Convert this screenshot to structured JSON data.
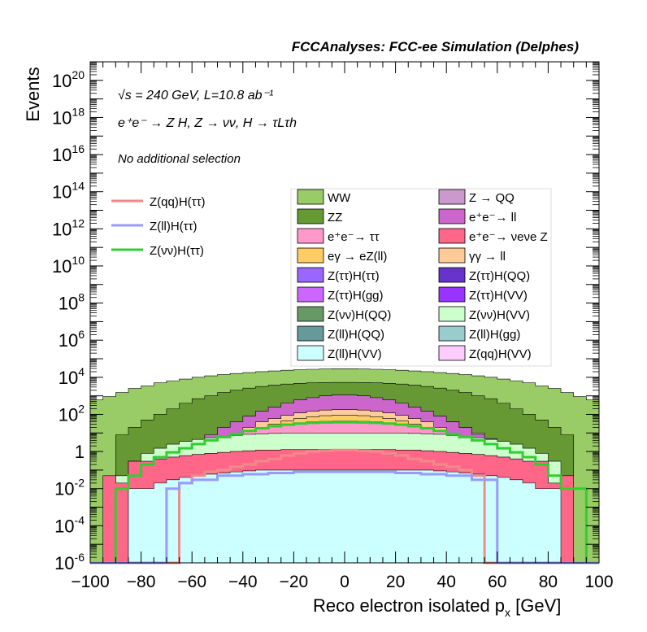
{
  "header": {
    "title": "FCCAnalyses: FCC-ee Simulation (Delphes)",
    "ecm_line": "√s = 240 GeV, L=10.8 ab⁻¹",
    "process_line": "e⁺e⁻ → Z H, Z → νν, H → τLτh",
    "selection_line": "No additional selection"
  },
  "legend_signal": [
    {
      "name": "Z(qq)H(ττ)",
      "color": "#f08a8a"
    },
    {
      "name": "Z(ll)H(ττ)",
      "color": "#9999ff"
    },
    {
      "name": "Z(νν)H(ττ)",
      "color": "#33cc33"
    }
  ],
  "legend_bkg": [
    {
      "name": "WW",
      "color": "#99cc66"
    },
    {
      "name": "Z → QQ",
      "color": "#cc99cc"
    },
    {
      "name": "ZZ",
      "color": "#669933"
    },
    {
      "name": "e⁺e⁻→ ll",
      "color": "#cc66cc"
    },
    {
      "name": "e⁺e⁻→ ττ",
      "color": "#ff99cc"
    },
    {
      "name": "e⁺e⁻→ νeνe Z",
      "color": "#ff6688"
    },
    {
      "name": "eγ → eZ(ll)",
      "color": "#ffcc66"
    },
    {
      "name": "γγ → ll",
      "color": "#ffcc99"
    },
    {
      "name": "Z(ττ)H(ττ)",
      "color": "#9966ff"
    },
    {
      "name": "Z(ττ)H(QQ)",
      "color": "#6633cc"
    },
    {
      "name": "Z(ττ)H(gg)",
      "color": "#cc66ff"
    },
    {
      "name": "Z(ττ)H(VV)",
      "color": "#9933ff"
    },
    {
      "name": "Z(νν)H(QQ)",
      "color": "#669966"
    },
    {
      "name": "Z(νν)H(VV)",
      "color": "#ccffcc"
    },
    {
      "name": "Z(ll)H(QQ)",
      "color": "#669999"
    },
    {
      "name": "Z(ll)H(gg)",
      "color": "#99cccc"
    },
    {
      "name": "Z(ll)H(VV)",
      "color": "#ccffff"
    },
    {
      "name": "Z(qq)H(VV)",
      "color": "#ffccff"
    }
  ],
  "chart_data": {
    "type": "area",
    "stacked": true,
    "yscale": "log",
    "xlabel": "Reco electron isolated p",
    "xlabel_sub": "x",
    "xlabel_unit": "[GeV]",
    "ylabel": "Events",
    "xlim": [
      -100,
      100
    ],
    "ylim": [
      1e-06,
      1e+21
    ],
    "xticks": [
      "−100",
      "−80",
      "−60",
      "−40",
      "−20",
      "0",
      "20",
      "40",
      "60",
      "80",
      "100"
    ],
    "yticks": [
      {
        "base": "10",
        "exp": "-6",
        "value": 1e-06
      },
      {
        "base": "10",
        "exp": "-4",
        "value": 0.0001
      },
      {
        "base": "10",
        "exp": "-2",
        "value": 0.01
      },
      {
        "base": "1",
        "exp": "",
        "value": 1
      },
      {
        "base": "10",
        "exp": "2",
        "value": 100.0
      },
      {
        "base": "10",
        "exp": "4",
        "value": 10000.0
      },
      {
        "base": "10",
        "exp": "6",
        "value": 1000000.0
      },
      {
        "base": "10",
        "exp": "8",
        "value": 100000000.0
      },
      {
        "base": "10",
        "exp": "10",
        "value": 10000000000.0
      },
      {
        "base": "10",
        "exp": "12",
        "value": 1000000000000.0
      },
      {
        "base": "10",
        "exp": "14",
        "value": 100000000000000.0
      },
      {
        "base": "10",
        "exp": "16",
        "value": 1e+16
      },
      {
        "base": "10",
        "exp": "18",
        "value": 1e+18
      },
      {
        "base": "10",
        "exp": "20",
        "value": 1e+20
      }
    ],
    "bin_centers": [
      -97.5,
      -92.5,
      -87.5,
      -82.5,
      -77.5,
      -72.5,
      -67.5,
      -62.5,
      -57.5,
      -52.5,
      -47.5,
      -42.5,
      -37.5,
      -32.5,
      -27.5,
      -22.5,
      -17.5,
      -12.5,
      -7.5,
      -2.5,
      2.5,
      7.5,
      12.5,
      17.5,
      22.5,
      27.5,
      32.5,
      37.5,
      42.5,
      47.5,
      52.5,
      57.5,
      62.5,
      67.5,
      72.5,
      77.5,
      82.5,
      87.5,
      92.5,
      97.5
    ],
    "stack_top_values": [
      {
        "name": "WW",
        "color": "#99cc66",
        "values": [
          600,
          900,
          1500,
          2500,
          3500,
          5000,
          6500,
          8000,
          10000,
          12000,
          14000,
          16000,
          18000,
          20000,
          22000,
          24000,
          26000,
          27000,
          28000,
          29000,
          29000,
          28000,
          27000,
          26000,
          24000,
          22000,
          20000,
          18000,
          16000,
          14000,
          12000,
          10000,
          8000,
          6500,
          5000,
          3500,
          2500,
          1500,
          900,
          600
        ]
      },
      {
        "name": "ZZ",
        "color": "#669933",
        "values": [
          1e-06,
          1e-06,
          8,
          20,
          50,
          100,
          200,
          400,
          700,
          1000,
          1500,
          2000,
          2600,
          3200,
          3800,
          4300,
          4700,
          5000,
          5200,
          5300,
          5300,
          5200,
          5000,
          4700,
          4300,
          3800,
          3200,
          2600,
          2000,
          1500,
          1000,
          700,
          400,
          200,
          100,
          50,
          20,
          8,
          1e-06,
          1e-06
        ]
      },
      {
        "name": "Z → QQ",
        "color": "#cc99cc",
        "values": [
          1e-06,
          1e-06,
          1e-06,
          1e-06,
          1e-06,
          1e-06,
          1e-06,
          1e-06,
          1e-06,
          5,
          10,
          20,
          40,
          60,
          100,
          150,
          200,
          280,
          350,
          400,
          420,
          380,
          320,
          260,
          200,
          150,
          100,
          60,
          40,
          20,
          10,
          5,
          1e-06,
          1e-06,
          1e-06,
          1e-06,
          1e-06,
          1e-06,
          1e-06,
          1e-06
        ]
      },
      {
        "name": "e⁺e⁻→ ll",
        "color": "#cc66cc",
        "values": [
          1e-06,
          1e-06,
          1e-06,
          1e-06,
          1e-06,
          1e-06,
          1e-06,
          1,
          3,
          8,
          20,
          40,
          80,
          150,
          250,
          400,
          600,
          800,
          1000,
          1100,
          1100,
          1000,
          800,
          600,
          400,
          250,
          150,
          80,
          40,
          20,
          8,
          3,
          1,
          1e-06,
          1e-06,
          1e-06,
          1e-06,
          1e-06,
          1e-06,
          1e-06
        ]
      },
      {
        "name": "γγ → ll",
        "color": "#ffcc99",
        "values": [
          1e-06,
          1e-06,
          1e-06,
          1e-06,
          1e-06,
          1e-06,
          1e-06,
          1e-06,
          1,
          2,
          5,
          10,
          20,
          40,
          60,
          90,
          120,
          150,
          170,
          180,
          180,
          170,
          150,
          120,
          90,
          60,
          40,
          20,
          10,
          5,
          2,
          1,
          1e-06,
          1e-06,
          1e-06,
          1e-06,
          1e-06,
          1e-06,
          1e-06,
          1e-06
        ]
      },
      {
        "name": "eγ → eZ(ll)",
        "color": "#ffcc66",
        "values": [
          1e-06,
          1e-06,
          1e-06,
          1e-06,
          1e-06,
          1e-06,
          1e-06,
          1e-06,
          1e-06,
          1,
          2,
          5,
          10,
          20,
          30,
          45,
          60,
          75,
          85,
          90,
          90,
          85,
          75,
          60,
          45,
          30,
          20,
          10,
          5,
          2,
          1,
          1e-06,
          1e-06,
          1e-06,
          1e-06,
          1e-06,
          1e-06,
          1e-06,
          1e-06,
          1e-06
        ]
      },
      {
        "name": "e⁺e⁻→ ττ",
        "color": "#ff99cc",
        "values": [
          1e-06,
          1e-06,
          1e-06,
          1e-06,
          1e-06,
          1e-06,
          0.5,
          1,
          2,
          3,
          5,
          8,
          12,
          18,
          25,
          30,
          35,
          40,
          42,
          44,
          44,
          42,
          40,
          35,
          30,
          25,
          18,
          12,
          8,
          5,
          3,
          2,
          1,
          0.5,
          1e-06,
          1e-06,
          1e-06,
          1e-06,
          1e-06,
          1e-06
        ]
      },
      {
        "name": "Z(νν)H(VV)",
        "color": "#ccffcc",
        "values": [
          1e-06,
          1e-06,
          0.05,
          0.3,
          0.8,
          1.5,
          2.5,
          3.5,
          4.5,
          5.5,
          6.5,
          7.5,
          8.5,
          9,
          9.5,
          10,
          10,
          10,
          10,
          10,
          10,
          10,
          10,
          10,
          10,
          9.5,
          9,
          8.5,
          7.5,
          6.5,
          5.5,
          4.5,
          3.5,
          2.5,
          1.5,
          0.8,
          0.3,
          0.05,
          1e-06,
          1e-06
        ]
      },
      {
        "name": "e⁺e⁻→ νeνe Z",
        "color": "#ff6688",
        "values": [
          1e-06,
          0.05,
          0.02,
          0.3,
          0.3,
          0.4,
          0.5,
          0.6,
          0.7,
          0.8,
          0.9,
          1,
          1.1,
          1.2,
          1.2,
          1.3,
          1.3,
          1.3,
          1.3,
          1.3,
          1.3,
          1.3,
          1.3,
          1.3,
          1.2,
          1.2,
          1.1,
          1,
          0.9,
          0.8,
          0.7,
          0.6,
          0.5,
          0.4,
          0.3,
          0.3,
          0.02,
          0.05,
          1e-06,
          1e-06
        ]
      },
      {
        "name": "Z(ll)H(VV)",
        "color": "#ccffff",
        "values": [
          1e-06,
          1e-06,
          1e-06,
          0.01,
          0.01,
          0.02,
          0.03,
          0.04,
          0.05,
          0.06,
          0.07,
          0.08,
          0.09,
          0.1,
          0.1,
          0.1,
          0.1,
          0.1,
          0.1,
          0.1,
          0.1,
          0.1,
          0.1,
          0.1,
          0.1,
          0.1,
          0.1,
          0.09,
          0.08,
          0.07,
          0.06,
          0.05,
          0.04,
          0.03,
          0.02,
          0.01,
          0.01,
          1e-06,
          1e-06,
          1e-06
        ]
      }
    ],
    "signal_lines": [
      {
        "name": "Z(νν)H(ττ)",
        "color": "#33cc33",
        "values": [
          1e-06,
          1e-06,
          0.01,
          0.05,
          0.2,
          0.5,
          0.9,
          1.5,
          2.5,
          4,
          6,
          9,
          13,
          18,
          23,
          28,
          32,
          35,
          37,
          38,
          38,
          37,
          35,
          32,
          28,
          23,
          18,
          13,
          9,
          6,
          4,
          2.5,
          1.5,
          0.9,
          0.5,
          0.2,
          0.05,
          0.01,
          0.01,
          1e-06
        ]
      },
      {
        "name": "Z(qq)H(ττ)",
        "color": "#f08a8a",
        "values": [
          1e-06,
          1e-06,
          1e-06,
          1e-06,
          1e-06,
          1e-06,
          1e-06,
          0.02,
          0.05,
          0.08,
          0.1,
          0.15,
          0.2,
          0.3,
          0.4,
          0.6,
          0.8,
          1.0,
          1.1,
          1.2,
          1.2,
          1.1,
          1.0,
          0.8,
          0.6,
          0.4,
          0.3,
          0.2,
          0.15,
          0.1,
          0.05,
          1e-06,
          1e-06,
          1e-06,
          1e-06,
          1e-06,
          1e-06,
          1e-06,
          1e-06,
          1e-06
        ]
      },
      {
        "name": "Z(ll)H(ττ)",
        "color": "#9999ff",
        "values": [
          1e-06,
          1e-06,
          1e-06,
          1e-06,
          1e-06,
          1e-06,
          0.01,
          0.02,
          0.03,
          0.03,
          0.05,
          0.05,
          0.06,
          0.06,
          0.07,
          0.07,
          0.08,
          0.08,
          0.08,
          0.08,
          0.08,
          0.08,
          0.08,
          0.08,
          0.07,
          0.07,
          0.06,
          0.06,
          0.05,
          0.05,
          0.03,
          0.03,
          1e-06,
          1e-06,
          1e-06,
          1e-06,
          1e-06,
          1e-06,
          1e-06,
          1e-06
        ]
      }
    ]
  }
}
